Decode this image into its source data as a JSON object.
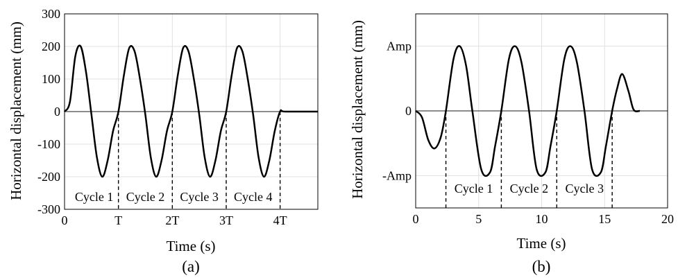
{
  "chart_data": [
    {
      "type": "line",
      "panel_label": "(a)",
      "xlabel": "Time (s)",
      "ylabel": "Horizontal displacement (mm)",
      "xlim": [
        0,
        4.7
      ],
      "ylim": [
        -300,
        300
      ],
      "x_ticks": [
        0,
        1,
        2,
        3,
        4
      ],
      "x_tick_labels": [
        "0",
        "T",
        "2T",
        "3T",
        "4T"
      ],
      "y_ticks": [
        300,
        200,
        100,
        0,
        -100,
        -200,
        -300
      ],
      "y_tick_labels": [
        "300",
        "200",
        "100",
        "0",
        "-100",
        "-200",
        "-300"
      ],
      "grid": true,
      "cycle_boundaries": [
        1,
        2,
        3,
        4
      ],
      "cycle_labels": [
        "Cycle 1",
        "Cycle 2",
        "Cycle 3",
        "Cycle 4"
      ],
      "series": [
        {
          "x": [
            0,
            0.1,
            0.2,
            0.3,
            0.4,
            0.5,
            0.6,
            0.7,
            0.8,
            0.9,
            1.0,
            1.1,
            1.2,
            1.3,
            1.4,
            1.5,
            1.6,
            1.7,
            1.8,
            1.9,
            2.0,
            2.1,
            2.2,
            2.3,
            2.4,
            2.5,
            2.6,
            2.7,
            2.8,
            2.9,
            3.0,
            3.1,
            3.2,
            3.3,
            3.4,
            3.5,
            3.6,
            3.7,
            3.8,
            3.9,
            4.0,
            4.1,
            4.7
          ],
          "values": [
            0,
            30,
            170,
            200,
            120,
            -10,
            -140,
            -200,
            -150,
            -60,
            0,
            110,
            195,
            185,
            100,
            -10,
            -140,
            -200,
            -150,
            -60,
            0,
            110,
            195,
            185,
            100,
            -10,
            -140,
            -200,
            -150,
            -60,
            0,
            110,
            195,
            185,
            100,
            -10,
            -140,
            -200,
            -150,
            -60,
            0,
            0,
            0
          ]
        }
      ]
    },
    {
      "type": "line",
      "panel_label": "(b)",
      "xlabel": "Time (s)",
      "ylabel": "Horizontal displacement (mm)",
      "xlim": [
        0,
        20
      ],
      "ylim": [
        -1.5,
        1.5
      ],
      "x_ticks": [
        0,
        5,
        10,
        15,
        20
      ],
      "x_tick_labels": [
        "0",
        "5",
        "10",
        "15",
        "20"
      ],
      "y_ticks": [
        1,
        0,
        -1
      ],
      "y_tick_labels": [
        "Amp",
        "0",
        "-Amp"
      ],
      "grid": true,
      "cycle_boundaries": [
        2.4,
        6.8,
        11.2,
        15.6
      ],
      "cycle_labels": [
        "Cycle 1",
        "Cycle 2",
        "Cycle 3"
      ],
      "series": [
        {
          "x": [
            0,
            0.5,
            1.0,
            1.5,
            2.0,
            2.4,
            3.0,
            3.5,
            4.0,
            4.5,
            5.2,
            5.9,
            6.3,
            6.8,
            7.4,
            7.9,
            8.4,
            9.0,
            9.6,
            10.3,
            10.7,
            11.2,
            11.8,
            12.3,
            12.8,
            13.4,
            14.0,
            14.7,
            15.1,
            15.6,
            16.0,
            16.4,
            16.9,
            17.3,
            17.8
          ],
          "values": [
            0,
            -0.1,
            -0.45,
            -0.58,
            -0.4,
            0,
            0.8,
            1.0,
            0.7,
            0,
            -0.9,
            -0.95,
            -0.55,
            0,
            0.8,
            1.0,
            0.75,
            0,
            -0.9,
            -0.95,
            -0.55,
            0,
            0.8,
            1.0,
            0.75,
            0,
            -0.9,
            -0.95,
            -0.55,
            0,
            0.35,
            0.57,
            0.3,
            0.02,
            0
          ]
        }
      ]
    }
  ]
}
